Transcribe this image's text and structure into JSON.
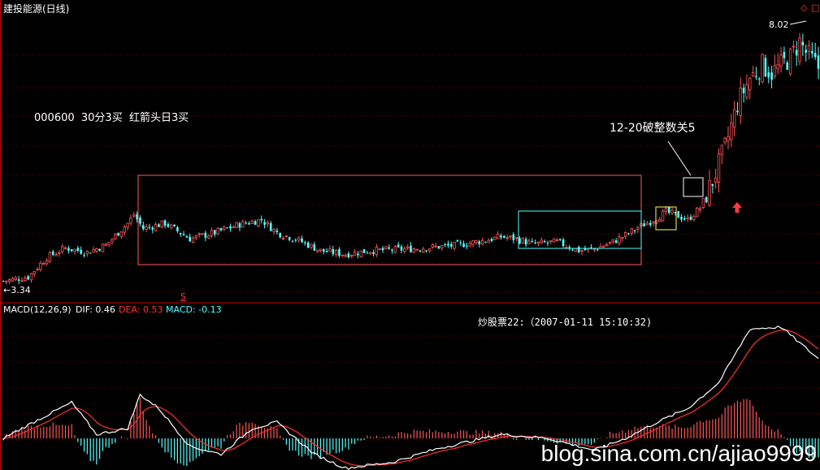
{
  "title": "建投能源(日线)",
  "top_icons": [
    "diamond-icon",
    "square-icon"
  ],
  "annotations": {
    "note1": "000600  30分3买  红箭头日3买",
    "note2": "12-20破整数关5",
    "high_label": "8.02",
    "low_label": "←3.34",
    "s_marker": "S",
    "source": "炒股票22:（2007-01-11 15:10:32)"
  },
  "macd_legend": {
    "name": "MACD(12,26,9)",
    "dif_label": "DIF: 0.46",
    "dea_label": "DEA: 0.53",
    "macd_label": "MACD: -0.13"
  },
  "watermark": "blog.sina.com.cn/ajiao9999",
  "colors": {
    "up": "#ff5555",
    "down": "#54ffff",
    "dif": "#ffffff",
    "dea": "#ff3030",
    "box_red": "#ff5a5a",
    "box_cyan": "#54ffff",
    "box_yellow": "#ffff66",
    "grid": "#7a0000",
    "divider": "#c00000"
  },
  "chart_data": {
    "type": "candlestick",
    "title": "建投能源(日线)",
    "price_range": [
      3.05,
      8.5
    ],
    "price_high_label": 8.02,
    "price_low_label": 3.34,
    "macd_params": [
      12,
      26,
      9
    ],
    "last_dif": 0.46,
    "last_dea": 0.53,
    "last_macd": -0.13,
    "price_anchors": [
      [
        0,
        3.36
      ],
      [
        8,
        3.44
      ],
      [
        14,
        3.82
      ],
      [
        20,
        4.0
      ],
      [
        27,
        3.92
      ],
      [
        33,
        4.06
      ],
      [
        40,
        4.48
      ],
      [
        42,
        4.65
      ],
      [
        45,
        4.38
      ],
      [
        52,
        4.48
      ],
      [
        60,
        4.18
      ],
      [
        68,
        4.3
      ],
      [
        76,
        4.46
      ],
      [
        83,
        4.55
      ],
      [
        88,
        4.3
      ],
      [
        95,
        4.15
      ],
      [
        102,
        3.95
      ],
      [
        110,
        3.88
      ],
      [
        118,
        3.95
      ],
      [
        130,
        3.98
      ],
      [
        145,
        4.05
      ],
      [
        155,
        4.15
      ],
      [
        160,
        4.22
      ],
      [
        165,
        4.18
      ],
      [
        170,
        4.08
      ],
      [
        178,
        4.12
      ],
      [
        185,
        3.95
      ],
      [
        190,
        3.98
      ],
      [
        196,
        4.12
      ],
      [
        200,
        4.25
      ],
      [
        204,
        4.4
      ],
      [
        208,
        4.52
      ],
      [
        213,
        4.7
      ],
      [
        216,
        4.65
      ],
      [
        220,
        4.55
      ],
      [
        224,
        4.78
      ],
      [
        228,
        5.3
      ],
      [
        232,
        5.95
      ],
      [
        236,
        6.8
      ],
      [
        240,
        7.3
      ],
      [
        244,
        7.55
      ],
      [
        247,
        7.4
      ],
      [
        250,
        7.55
      ],
      [
        253,
        7.7
      ],
      [
        256,
        8.0
      ],
      [
        258,
        7.8
      ],
      [
        262,
        7.5
      ]
    ],
    "macd_anchors": [
      [
        0,
        0.0
      ],
      [
        12,
        0.1
      ],
      [
        22,
        0.18
      ],
      [
        30,
        0.02
      ],
      [
        40,
        0.05
      ],
      [
        44,
        0.22
      ],
      [
        50,
        0.15
      ],
      [
        60,
        -0.04
      ],
      [
        70,
        -0.08
      ],
      [
        80,
        0.05
      ],
      [
        88,
        0.08
      ],
      [
        100,
        -0.08
      ],
      [
        110,
        -0.15
      ],
      [
        125,
        -0.12
      ],
      [
        140,
        -0.05
      ],
      [
        160,
        0.02
      ],
      [
        175,
        0.0
      ],
      [
        190,
        -0.06
      ],
      [
        200,
        0.0
      ],
      [
        210,
        0.08
      ],
      [
        220,
        0.15
      ],
      [
        230,
        0.28
      ],
      [
        240,
        0.55
      ],
      [
        250,
        0.56
      ],
      [
        256,
        0.48
      ],
      [
        262,
        0.4
      ]
    ]
  }
}
